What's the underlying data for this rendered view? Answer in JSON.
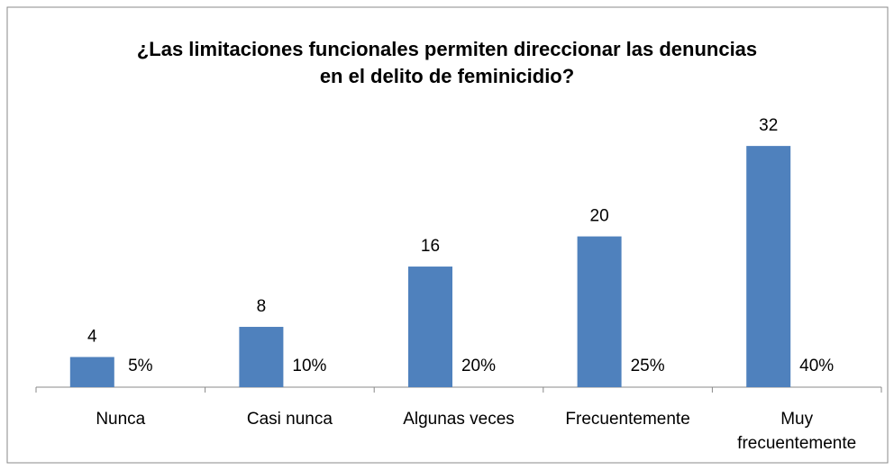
{
  "chart_data": {
    "type": "bar",
    "title": "¿Las limitaciones funcionales permiten direccionar las denuncias en el delito de feminicidio?",
    "categories": [
      "Nunca",
      "Casi nunca",
      "Algunas veces",
      "Frecuentemente",
      "Muy frecuentemente"
    ],
    "series": [
      {
        "color": "#4f81bd",
        "values": [
          4,
          8,
          16,
          20,
          32
        ]
      },
      {
        "values": [
          5,
          10,
          20,
          25,
          40
        ],
        "value_labels": [
          "5%",
          "10%",
          "20%",
          "25%",
          "40%"
        ]
      }
    ],
    "ylim": [
      0,
      35
    ]
  }
}
